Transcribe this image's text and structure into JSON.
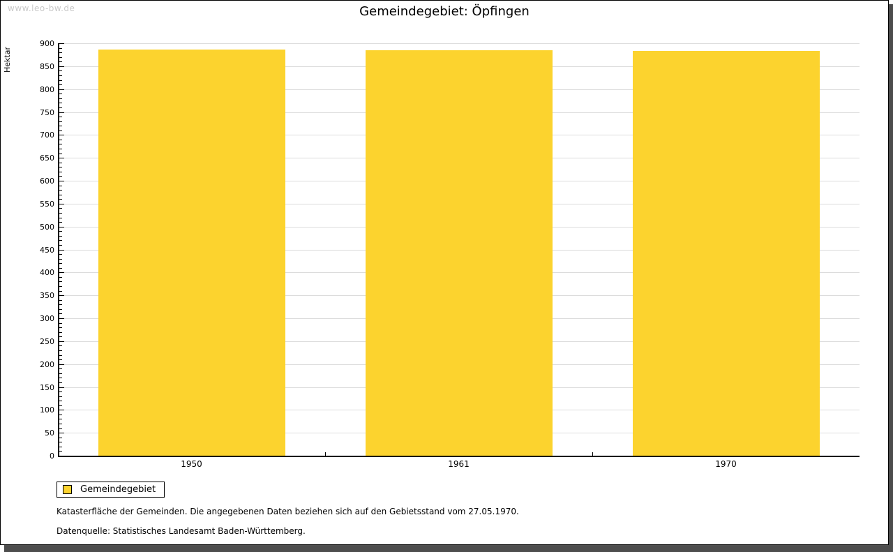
{
  "page": {
    "watermark": "www.leo-bw.de",
    "title": "Gemeindegebiet: Öpfingen"
  },
  "chart_data": {
    "type": "bar",
    "title": "Gemeindegebiet: Öpfingen",
    "categories": [
      "1950",
      "1961",
      "1970"
    ],
    "series": [
      {
        "name": "Gemeindegebiet",
        "values": [
          886,
          885,
          884
        ]
      }
    ],
    "xlabel": "",
    "ylabel": "Hektar",
    "ylim": [
      0,
      900
    ],
    "y_major_step": 50,
    "y_minor_step": 10,
    "grid": true,
    "legend_position": "bottom-left",
    "bar_color": "#fcd32e"
  },
  "legend": {
    "items": [
      {
        "label": "Gemeindegebiet",
        "color": "#fcd32e"
      }
    ]
  },
  "footnotes": [
    "Katasterfläche der Gemeinden. Die angegebenen Daten beziehen sich auf den Gebietsstand vom 27.05.1970.",
    "Datenquelle: Statistisches Landesamt Baden-Württemberg."
  ],
  "colors": {
    "bar": "#fcd32e",
    "gridline": "#dcdcdc",
    "axis": "#000000",
    "shadow": "#4d4d4d",
    "watermark_text": "#c9c9c9",
    "background": "#ffffff"
  }
}
